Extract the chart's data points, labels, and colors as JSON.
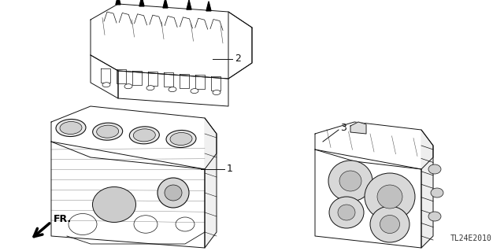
{
  "background_color": "#ffffff",
  "diagram_code": "TL24E2010",
  "fr_text": "FR.",
  "label_2": "2",
  "label_1": "1",
  "label_3": "3",
  "code_fontsize": 7,
  "label_fontsize": 9,
  "figsize": [
    6.4,
    3.19
  ],
  "dpi": 100
}
